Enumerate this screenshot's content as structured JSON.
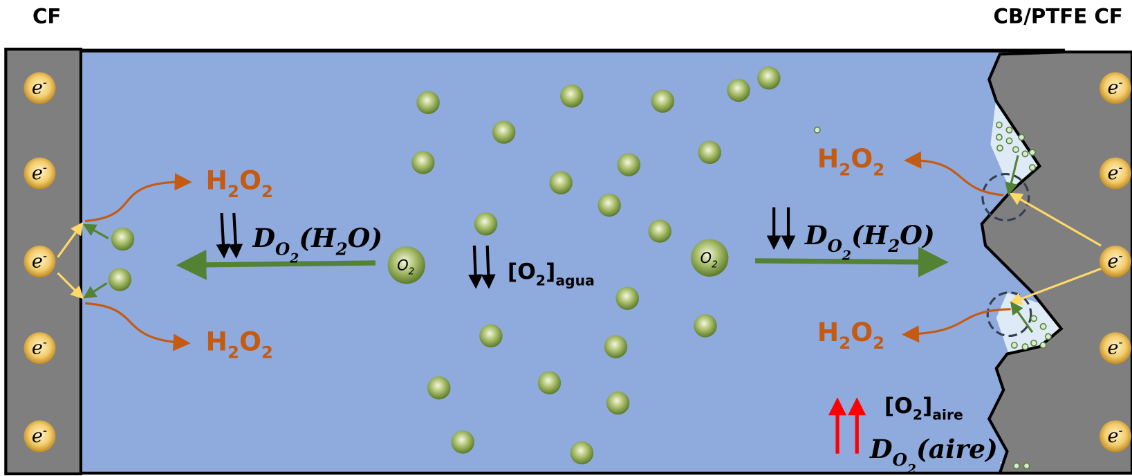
{
  "labels": {
    "left_electrode": "CF",
    "right_electrode": "CB/PTFE CF"
  },
  "electron": [
    {
      "text": "e"
    },
    {
      "text": "-",
      "sup": true
    }
  ],
  "product": [
    {
      "text": "H"
    },
    {
      "text": "2",
      "sub": 1
    },
    {
      "text": "O"
    },
    {
      "text": "2",
      "sub": 1
    }
  ],
  "diffusion_water": [
    {
      "text": "D"
    },
    {
      "text": "O",
      "sub": 1
    },
    {
      "text": "2",
      "sub": 2
    },
    {
      "text": "(H"
    },
    {
      "text": "2",
      "sub": 1
    },
    {
      "text": "O)"
    }
  ],
  "concentration_water": [
    {
      "text": "[O"
    },
    {
      "text": "2",
      "sub": 1
    },
    {
      "text": "]"
    },
    {
      "text": "agua",
      "sub": 1
    }
  ],
  "oxygen": [
    {
      "text": "O"
    },
    {
      "text": "2",
      "sub": 1
    }
  ],
  "concentration_air": [
    {
      "text": "[O"
    },
    {
      "text": "2",
      "sub": 1
    },
    {
      "text": "]"
    },
    {
      "text": "aire",
      "sub": 1
    }
  ],
  "diffusion_air": [
    {
      "text": "D"
    },
    {
      "text": "O",
      "sub": 1
    },
    {
      "text": "2",
      "sub": 2
    },
    {
      "text": "(aire)"
    }
  ]
}
